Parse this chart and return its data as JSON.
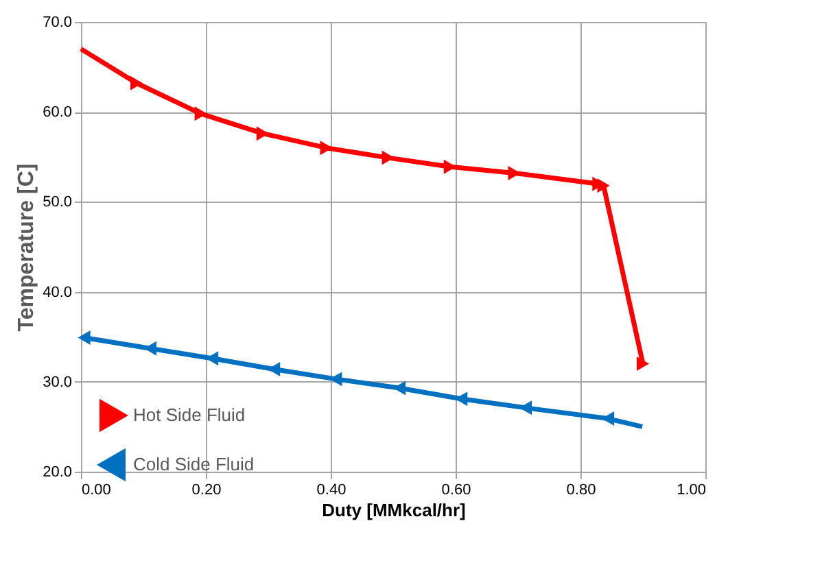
{
  "chart_data": {
    "type": "line",
    "xlabel": "Duty [MMkcal/hr]",
    "ylabel": "Temperature [C]",
    "series": [
      {
        "name": "Hot Side Fluid",
        "color": "#ff0000",
        "x": [
          0.0,
          0.089,
          0.192,
          0.291,
          0.393,
          0.492,
          0.591,
          0.694,
          0.829,
          0.837,
          0.9
        ],
        "values": [
          67.0,
          63.2,
          59.8,
          57.6,
          56.0,
          54.9,
          53.9,
          53.2,
          52.0,
          51.8,
          32.0
        ]
      },
      {
        "name": "Cold Side Fluid",
        "color": "#0070c0",
        "x": [
          0.899,
          0.844,
          0.712,
          0.609,
          0.51,
          0.408,
          0.309,
          0.21,
          0.111,
          0.005
        ],
        "values": [
          25.0,
          25.9,
          27.1,
          28.1,
          29.3,
          30.3,
          31.4,
          32.6,
          33.7,
          34.9
        ]
      }
    ],
    "xlim": [
      0,
      1
    ],
    "xticks": [
      {
        "value": 0,
        "label": "0.00"
      },
      {
        "value": 0.2,
        "label": "0.20"
      },
      {
        "value": 0.4,
        "label": "0.40"
      },
      {
        "value": 0.6,
        "label": "0.60"
      },
      {
        "value": 0.8,
        "label": "0.80"
      },
      {
        "value": 1,
        "label": "1.00"
      }
    ],
    "ylim": [
      20,
      70
    ],
    "yticks": [
      {
        "value": 20,
        "label": "20.0"
      },
      {
        "value": 30,
        "label": "30.0"
      },
      {
        "value": 40,
        "label": "40.0"
      },
      {
        "value": 50,
        "label": "50.0"
      },
      {
        "value": 60,
        "label": "60.0"
      },
      {
        "value": 70,
        "label": "70.0"
      }
    ],
    "grid": true,
    "legend": "bottom left",
    "marker": "triangle",
    "line_style": "solid"
  }
}
